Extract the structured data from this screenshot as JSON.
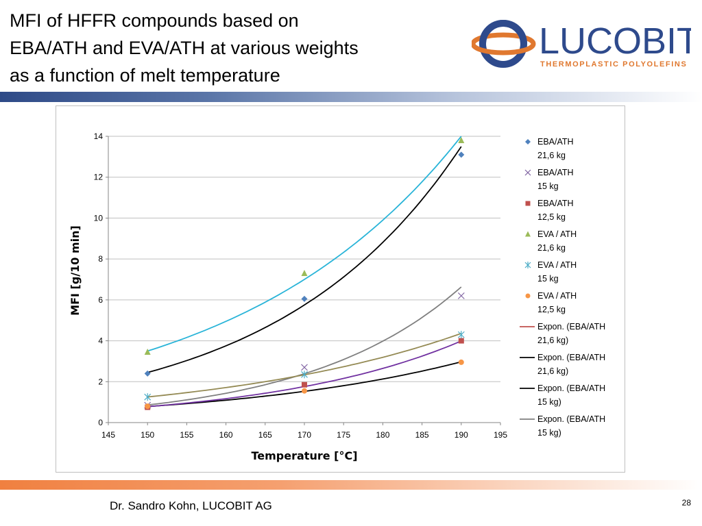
{
  "slide": {
    "title_lines": [
      "MFI of HFFR compounds based on",
      "EBA/ATH and EVA/ATH at various weights",
      "as a function of melt temperature"
    ],
    "footer_author": "Dr. Sandro Kohn, LUCOBIT AG",
    "page_number": "28"
  },
  "logo": {
    "name": "LUCOBIT",
    "tagline": "THERMOPLASTIC POLYOLEFINS",
    "colors": {
      "blue": "#2e4a8c",
      "orange": "#e0782f"
    }
  },
  "colors": {
    "top_bar": "#2e4a87",
    "bottom_bar": "#f08040"
  },
  "chart_data": {
    "type": "scatter",
    "title": "",
    "xlabel": "Temperature [°C]",
    "ylabel": "MFI [g/10 min]",
    "xlim": [
      145,
      195
    ],
    "ylim": [
      0,
      14
    ],
    "x_ticks": [
      145,
      150,
      155,
      160,
      165,
      170,
      175,
      180,
      185,
      190,
      195
    ],
    "y_ticks": [
      0,
      2,
      4,
      6,
      8,
      10,
      12,
      14
    ],
    "grid": {
      "horizontal": true,
      "vertical": false
    },
    "legend_position": "right",
    "series": [
      {
        "name": "EBA/ATH 21,6 kg",
        "label_lines": [
          "EBA/ATH",
          "21,6 kg"
        ],
        "marker": "diamond",
        "color": "#4f81bd",
        "x": [
          150,
          170,
          190
        ],
        "y": [
          2.4,
          6.05,
          13.1
        ]
      },
      {
        "name": "EBA/ATH 15 kg",
        "label_lines": [
          "EBA/ATH",
          "15 kg"
        ],
        "marker": "x",
        "color": "#8064a2",
        "x": [
          150,
          170,
          190
        ],
        "y": [
          0.85,
          2.7,
          6.2
        ]
      },
      {
        "name": "EBA/ATH 12,5 kg",
        "label_lines": [
          "EBA/ATH",
          "12,5 kg"
        ],
        "marker": "square",
        "color": "#c0504d",
        "x": [
          150,
          170,
          190
        ],
        "y": [
          0.75,
          1.85,
          4.0
        ]
      },
      {
        "name": "EVA / ATH 21,6 kg",
        "label_lines": [
          "EVA / ATH",
          "21,6 kg"
        ],
        "marker": "triangle",
        "color": "#9bbb59",
        "x": [
          150,
          170,
          190
        ],
        "y": [
          3.45,
          7.3,
          13.8
        ]
      },
      {
        "name": "EVA / ATH 15 kg",
        "label_lines": [
          "EVA / ATH",
          "15 kg"
        ],
        "marker": "star",
        "color": "#4bacc6",
        "x": [
          150,
          170,
          190
        ],
        "y": [
          1.25,
          2.35,
          4.3
        ]
      },
      {
        "name": "EVA / ATH 12,5 kg",
        "label_lines": [
          "EVA / ATH",
          "12,5 kg"
        ],
        "marker": "circle",
        "color": "#f79646",
        "x": [
          150,
          170,
          190
        ],
        "y": [
          0.8,
          1.55,
          2.95
        ]
      }
    ],
    "trendlines": [
      {
        "name": "Expon. (EBA/ATH 21,6 kg)",
        "label_lines": [
          "Expon. (EBA/ATH",
          "21,6 kg)"
        ],
        "color": "#c0504d",
        "legend_only": true,
        "x": [],
        "y": []
      },
      {
        "name": "Expon. (EBA/ATH 21,6 kg)",
        "label_lines": [
          "Expon. (EBA/ATH",
          "21,6 kg)"
        ],
        "color": "#000000",
        "x": [
          150,
          170,
          190
        ],
        "y": [
          2.45,
          5.75,
          13.5
        ]
      },
      {
        "name": "Expon. (EBA/ATH 15 kg)",
        "label_lines": [
          "Expon. (EBA/ATH",
          "15 kg)"
        ],
        "color": "#000000",
        "x": [
          150,
          170,
          190
        ],
        "y": [
          0.78,
          1.55,
          2.95
        ]
      },
      {
        "name": "Expon. (EBA/ATH 15 kg)",
        "label_lines": [
          "Expon. (EBA/ATH",
          "15 kg)"
        ],
        "color": "#7f7f7f",
        "x": [
          150,
          170,
          190
        ],
        "y": [
          0.85,
          2.45,
          6.55
        ]
      },
      {
        "name": "",
        "label_lines": [],
        "color": "#29b4d8",
        "legend_only": false,
        "x": [
          150,
          170,
          190
        ],
        "y": [
          3.5,
          7.0,
          14.0
        ]
      },
      {
        "name": "",
        "label_lines": [],
        "color": "#7030a0",
        "x": [
          150,
          170,
          190
        ],
        "y": [
          0.78,
          1.75,
          4.0
        ]
      },
      {
        "name": "",
        "label_lines": [],
        "color": "#948a54",
        "x": [
          150,
          170,
          190
        ],
        "y": [
          1.25,
          2.35,
          4.35
        ]
      }
    ]
  }
}
